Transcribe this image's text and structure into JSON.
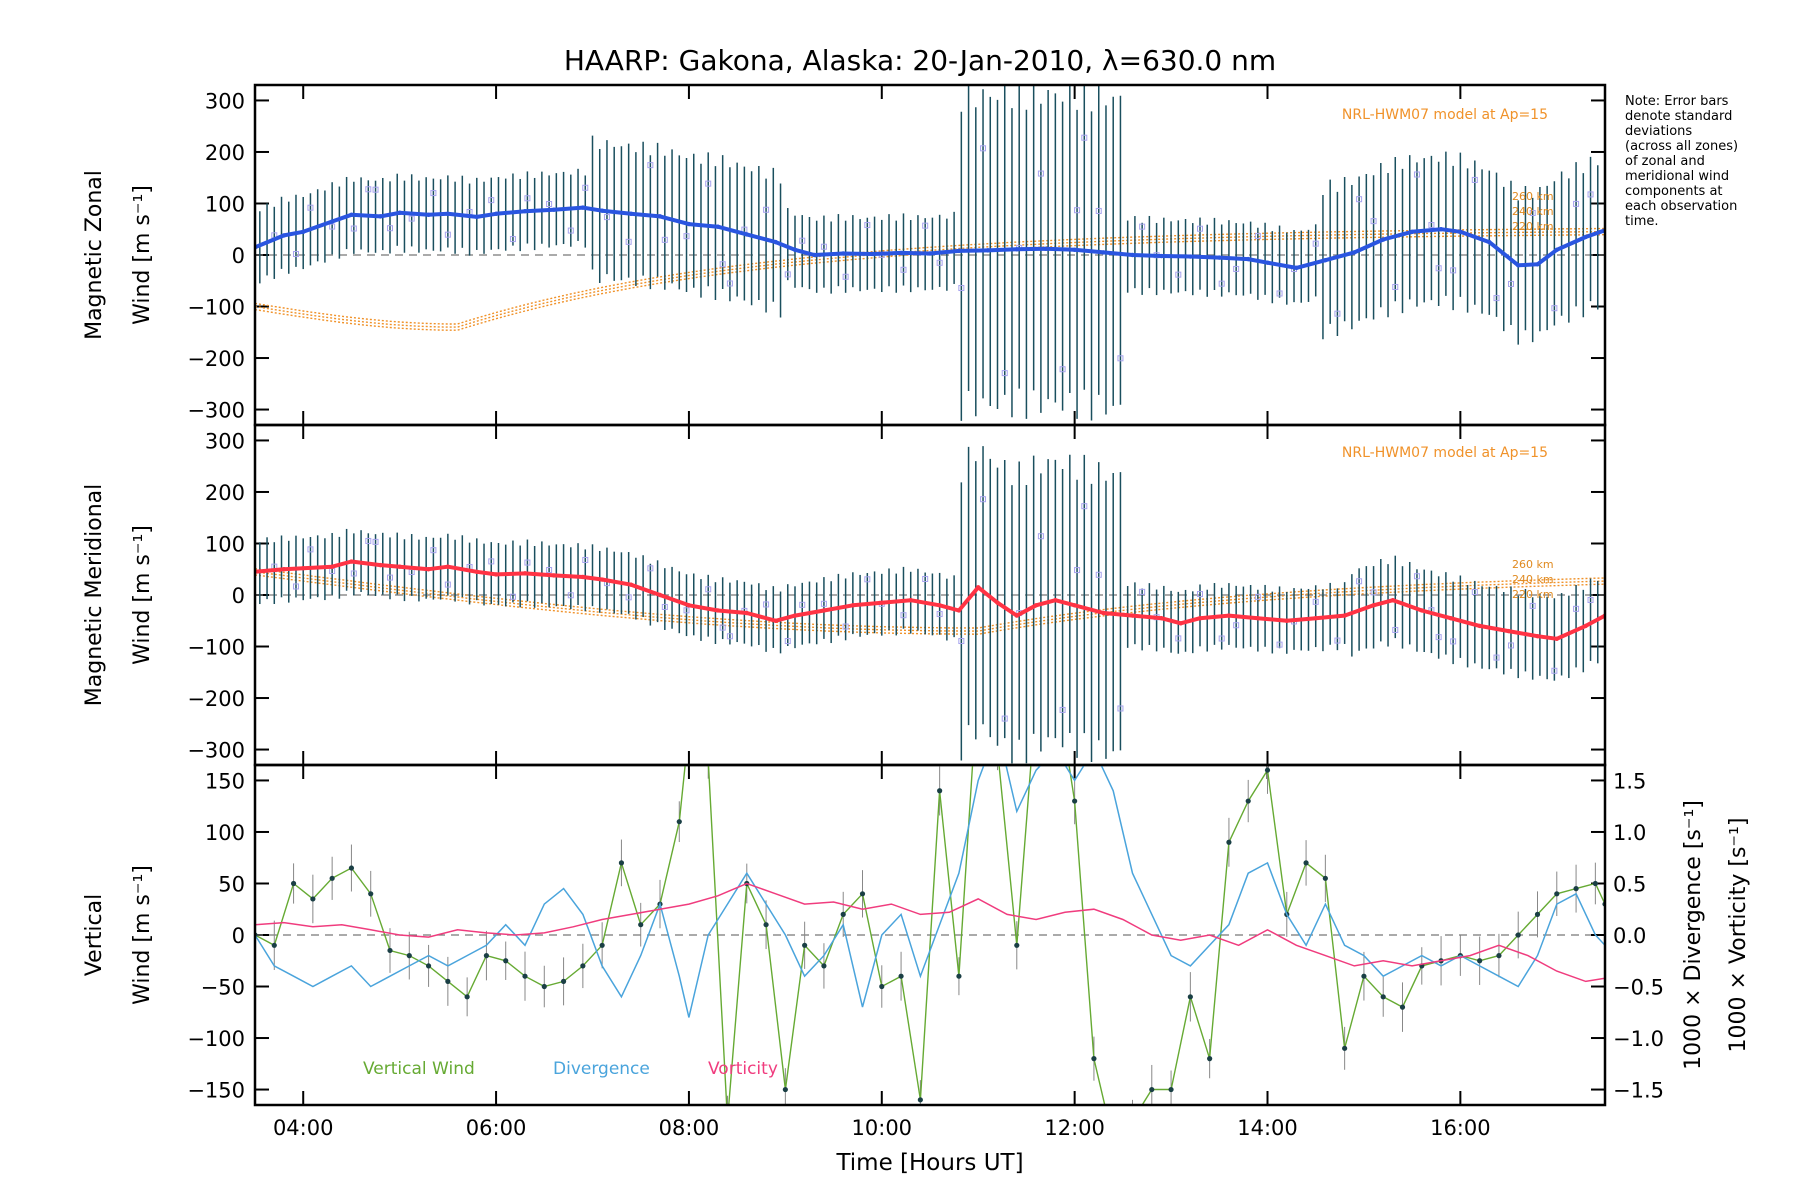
{
  "chart_data": [
    {
      "type": "line",
      "title": "HAARP: Gakona,  Alaska: 20-Jan-2010, λ=630.0 nm",
      "ylabel": [
        "Magnetic Zonal",
        "Wind [m s⁻¹]"
      ],
      "ylim": [
        -330,
        330
      ],
      "yticks": [
        -300,
        -200,
        -100,
        0,
        100,
        200,
        300
      ],
      "model_label": "NRL-HWM07 model at Ap=15",
      "model_alt_labels": [
        "260 km",
        "240 km",
        "220 km"
      ],
      "series": [
        {
          "color": "#2a55e0",
          "x": [
            3.5,
            3.8,
            4.0,
            4.3,
            4.5,
            4.8,
            5.0,
            5.3,
            5.5,
            5.8,
            6.0,
            6.3,
            6.6,
            6.9,
            7.1,
            7.4,
            7.7,
            8.0,
            8.3,
            8.6,
            8.9,
            9.1,
            9.3,
            9.6,
            9.9,
            10.2,
            10.5,
            10.8,
            11.1,
            11.4,
            11.7,
            12.0,
            12.3,
            12.6,
            12.9,
            13.2,
            13.5,
            13.8,
            14.0,
            14.3,
            14.6,
            14.9,
            15.2,
            15.5,
            15.8,
            16.0,
            16.3,
            16.6,
            16.8,
            17.0,
            17.3,
            17.5
          ],
          "y": [
            15,
            38,
            45,
            65,
            78,
            75,
            82,
            78,
            80,
            74,
            80,
            85,
            88,
            92,
            86,
            80,
            75,
            60,
            55,
            40,
            25,
            10,
            0,
            3,
            2,
            4,
            3,
            8,
            9,
            11,
            12,
            10,
            5,
            0,
            -2,
            -3,
            -5,
            -8,
            -15,
            -25,
            -10,
            5,
            30,
            45,
            50,
            45,
            25,
            -20,
            -18,
            10,
            35,
            48
          ]
        }
      ]
    },
    {
      "type": "line",
      "ylabel": [
        "Magnetic Meridional",
        "Wind [m s⁻¹]"
      ],
      "ylim": [
        -330,
        330
      ],
      "yticks": [
        -300,
        -200,
        -100,
        0,
        100,
        200,
        300
      ],
      "model_label": "NRL-HWM07 model at Ap=15",
      "model_alt_labels": [
        "260 km",
        "240 km",
        "220 km"
      ],
      "series": [
        {
          "color": "#ff3344",
          "x": [
            3.5,
            3.8,
            4.0,
            4.3,
            4.5,
            4.8,
            5.0,
            5.3,
            5.5,
            5.8,
            6.0,
            6.3,
            6.6,
            6.9,
            7.1,
            7.4,
            7.7,
            8.0,
            8.3,
            8.6,
            8.9,
            9.1,
            9.4,
            9.7,
            10.0,
            10.3,
            10.6,
            10.8,
            11.0,
            11.2,
            11.4,
            11.6,
            11.8,
            12.0,
            12.3,
            12.6,
            12.9,
            13.1,
            13.3,
            13.6,
            13.9,
            14.2,
            14.5,
            14.8,
            15.1,
            15.3,
            15.6,
            15.9,
            16.2,
            16.5,
            16.8,
            17.0,
            17.3,
            17.5
          ],
          "y": [
            45,
            50,
            52,
            55,
            65,
            58,
            55,
            50,
            55,
            45,
            40,
            42,
            38,
            35,
            30,
            20,
            0,
            -20,
            -30,
            -35,
            -50,
            -40,
            -30,
            -20,
            -15,
            -10,
            -20,
            -30,
            15,
            -15,
            -40,
            -20,
            -10,
            -20,
            -35,
            -40,
            -45,
            -55,
            -45,
            -40,
            -45,
            -50,
            -45,
            -40,
            -20,
            -10,
            -30,
            -45,
            -60,
            -70,
            -80,
            -85,
            -60,
            -40
          ]
        }
      ]
    },
    {
      "type": "line",
      "ylabel_left": [
        "Vertical",
        "Wind [m s⁻¹]"
      ],
      "ylabel_right": [
        "1000 × Divergence [s⁻¹]",
        "1000 × Vorticity [s⁻¹]"
      ],
      "ylim": [
        -165,
        165
      ],
      "ylim_right": [
        -1.65,
        1.65
      ],
      "yticks": [
        -150,
        -100,
        -50,
        0,
        50,
        100,
        150
      ],
      "yticks_right": [
        "-1.5",
        "-1.0",
        "-0.5",
        "0.0",
        "0.5",
        "1.0",
        "1.5"
      ],
      "xlabel": "Time [Hours UT]",
      "xlim": [
        3.5,
        17.5
      ],
      "xticks": [
        "04:00",
        "06:00",
        "08:00",
        "10:00",
        "12:00",
        "14:00",
        "16:00"
      ],
      "legend": [
        "Vertical Wind",
        "Divergence",
        "Vorticity"
      ],
      "series": [
        {
          "name": "Vertical Wind",
          "color": "#66aa33",
          "x": [
            3.5,
            3.7,
            3.9,
            4.1,
            4.3,
            4.5,
            4.7,
            4.9,
            5.1,
            5.3,
            5.5,
            5.7,
            5.9,
            6.1,
            6.3,
            6.5,
            6.7,
            6.9,
            7.1,
            7.3,
            7.5,
            7.7,
            7.9,
            8.0,
            8.2,
            8.4,
            8.6,
            8.8,
            9.0,
            9.2,
            9.4,
            9.6,
            9.8,
            10.0,
            10.2,
            10.4,
            10.6,
            10.8,
            11.0,
            11.2,
            11.4,
            11.6,
            11.8,
            12.0,
            12.2,
            12.4,
            12.6,
            12.8,
            13.0,
            13.2,
            13.4,
            13.6,
            13.8,
            14.0,
            14.2,
            14.4,
            14.6,
            14.8,
            15.0,
            15.2,
            15.4,
            15.6,
            15.8,
            16.0,
            16.2,
            16.4,
            16.6,
            16.8,
            17.0,
            17.2,
            17.4,
            17.5
          ],
          "y": [
            0,
            -10,
            50,
            35,
            55,
            65,
            40,
            -15,
            -20,
            -30,
            -45,
            -60,
            -20,
            -25,
            -40,
            -50,
            -45,
            -30,
            -10,
            70,
            10,
            30,
            110,
            200,
            170,
            -180,
            50,
            10,
            -150,
            -10,
            -30,
            20,
            40,
            -50,
            -40,
            -160,
            140,
            -40,
            250,
            180,
            -10,
            230,
            250,
            130,
            -120,
            -200,
            -180,
            -150,
            -150,
            -60,
            -120,
            90,
            130,
            160,
            20,
            70,
            55,
            -110,
            -40,
            -60,
            -70,
            -30,
            -25,
            -20,
            -25,
            -20,
            0,
            20,
            40,
            45,
            50,
            30
          ]
        },
        {
          "name": "Divergence",
          "color": "#4aa4dc",
          "x": [
            3.5,
            3.7,
            3.9,
            4.1,
            4.3,
            4.5,
            4.7,
            4.9,
            5.1,
            5.3,
            5.5,
            5.7,
            5.9,
            6.1,
            6.3,
            6.5,
            6.7,
            6.9,
            7.1,
            7.3,
            7.5,
            7.7,
            7.9,
            8.0,
            8.2,
            8.4,
            8.6,
            8.8,
            9.0,
            9.2,
            9.4,
            9.6,
            9.8,
            10.0,
            10.2,
            10.4,
            10.6,
            10.8,
            11.0,
            11.2,
            11.4,
            11.6,
            11.8,
            12.0,
            12.2,
            12.4,
            12.6,
            12.8,
            13.0,
            13.2,
            13.4,
            13.6,
            13.8,
            14.0,
            14.2,
            14.4,
            14.6,
            14.8,
            15.0,
            15.2,
            15.4,
            15.6,
            15.8,
            16.0,
            16.2,
            16.4,
            16.6,
            16.8,
            17.0,
            17.2,
            17.4,
            17.5
          ],
          "y": [
            0.0,
            -0.3,
            -0.4,
            -0.5,
            -0.4,
            -0.3,
            -0.5,
            -0.4,
            -0.3,
            -0.2,
            -0.3,
            -0.2,
            -0.1,
            0.1,
            -0.1,
            0.3,
            0.45,
            0.2,
            -0.3,
            -0.6,
            -0.2,
            0.3,
            -0.4,
            -0.8,
            0.0,
            0.3,
            0.6,
            0.3,
            0.0,
            -0.4,
            -0.2,
            0.1,
            -0.7,
            0.0,
            0.2,
            -0.4,
            0.1,
            0.6,
            1.5,
            2.0,
            1.2,
            1.6,
            1.8,
            1.5,
            1.8,
            1.4,
            0.6,
            0.2,
            -0.2,
            -0.3,
            -0.1,
            0.1,
            0.6,
            0.7,
            0.2,
            -0.1,
            0.3,
            -0.1,
            -0.2,
            -0.4,
            -0.3,
            -0.2,
            -0.3,
            -0.2,
            -0.3,
            -0.4,
            -0.5,
            -0.2,
            0.3,
            0.4,
            0.0,
            -0.1
          ]
        },
        {
          "name": "Vorticity",
          "color": "#f03c7e",
          "x": [
            3.5,
            3.8,
            4.1,
            4.4,
            4.7,
            5.0,
            5.3,
            5.6,
            5.9,
            6.2,
            6.5,
            6.8,
            7.1,
            7.4,
            7.7,
            8.0,
            8.3,
            8.6,
            8.9,
            9.2,
            9.5,
            9.8,
            10.1,
            10.4,
            10.7,
            11.0,
            11.3,
            11.6,
            11.9,
            12.2,
            12.5,
            12.8,
            13.1,
            13.4,
            13.7,
            14.0,
            14.3,
            14.6,
            14.9,
            15.2,
            15.5,
            15.8,
            16.1,
            16.4,
            16.7,
            17.0,
            17.3,
            17.5
          ],
          "y": [
            0.1,
            0.12,
            0.08,
            0.1,
            0.05,
            0.0,
            -0.02,
            0.05,
            0.02,
            0.0,
            0.02,
            0.08,
            0.15,
            0.2,
            0.25,
            0.3,
            0.38,
            0.5,
            0.4,
            0.3,
            0.32,
            0.25,
            0.3,
            0.2,
            0.22,
            0.35,
            0.2,
            0.15,
            0.22,
            0.25,
            0.15,
            0.0,
            -0.05,
            0.0,
            -0.1,
            0.05,
            -0.1,
            -0.2,
            -0.3,
            -0.25,
            -0.3,
            -0.25,
            -0.2,
            -0.1,
            -0.2,
            -0.35,
            -0.45,
            -0.42
          ]
        }
      ]
    }
  ],
  "note": [
    "Note: Error bars",
    "denote standard",
    "deviations",
    "(across all zones)",
    "of zonal and",
    "meridional wind",
    "components at",
    "each observation",
    "time."
  ]
}
